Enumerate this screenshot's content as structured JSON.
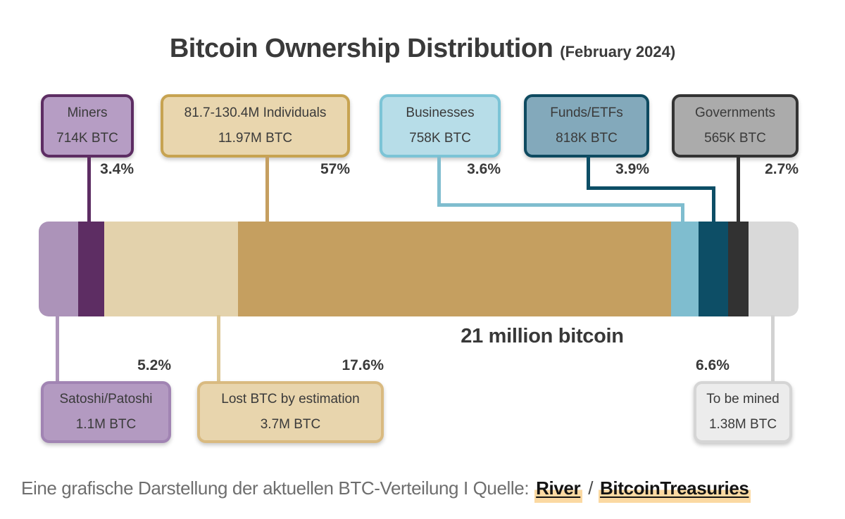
{
  "title": {
    "main": "Bitcoin Ownership Distribution",
    "subtitle": "(February 2024)"
  },
  "chart_data": {
    "type": "bar",
    "stacked": true,
    "orientation": "horizontal",
    "title": "Bitcoin Ownership Distribution",
    "subtitle": "(February 2024)",
    "total_label": "21 million bitcoin",
    "unit": "BTC",
    "segments": [
      {
        "name": "Satoshi/Patoshi",
        "amount": "1.1M BTC",
        "percent": 5.2,
        "color": "#ac93b9",
        "callout_side": "bottom"
      },
      {
        "name": "Miners",
        "amount": "714K BTC",
        "percent": 3.4,
        "color": "#5d2d63",
        "callout_side": "top"
      },
      {
        "name": "Lost BTC by estimation",
        "amount": "3.7M BTC",
        "percent": 17.6,
        "color": "#e3d2ac",
        "callout_side": "bottom"
      },
      {
        "name": "81.7-130.4M Individuals",
        "amount": "11.97M BTC",
        "percent": 57,
        "color": "#c59f60",
        "callout_side": "top"
      },
      {
        "name": "Businesses",
        "amount": "758K BTC",
        "percent": 3.6,
        "color": "#7fbdcf",
        "callout_side": "top"
      },
      {
        "name": "Funds/ETFs",
        "amount": "818K BTC",
        "percent": 3.9,
        "color": "#0d4e66",
        "callout_side": "top"
      },
      {
        "name": "Governments",
        "amount": "565K BTC",
        "percent": 2.7,
        "color": "#323232",
        "callout_side": "top"
      },
      {
        "name": "To be mined",
        "amount": "1.38M BTC",
        "percent": 6.6,
        "color": "#d9d9d9",
        "callout_side": "bottom"
      }
    ]
  },
  "callouts": {
    "top": [
      {
        "label": "Miners",
        "amount": "714K BTC",
        "percent": "3.4%",
        "fill": "#b69dc4",
        "border": "#5d2d63"
      },
      {
        "label": "81.7-130.4M Individuals",
        "amount": "11.97M BTC",
        "percent": "57%",
        "fill": "#e9d6ae",
        "border": "#c7a351"
      },
      {
        "label": "Businesses",
        "amount": "758K BTC",
        "percent": "3.6%",
        "fill": "#b7dde8",
        "border": "#7cc4d6"
      },
      {
        "label": "Funds/ETFs",
        "amount": "818K BTC",
        "percent": "3.9%",
        "fill": "#83a9bb",
        "border": "#0e4a60"
      },
      {
        "label": "Governments",
        "amount": "565K BTC",
        "percent": "2.7%",
        "fill": "#ababab",
        "border": "#333333"
      }
    ],
    "bottom": [
      {
        "label": "Satoshi/Patoshi",
        "amount": "1.1M BTC",
        "percent": "5.2%",
        "fill": "#b39ac1",
        "border": "#a184b3"
      },
      {
        "label": "Lost BTC by estimation",
        "amount": "3.7M BTC",
        "percent": "17.6%",
        "fill": "#e8d5ad",
        "border": "#d9ba80"
      },
      {
        "label": "To be mined",
        "amount": "1.38M BTC",
        "percent": "6.6%",
        "fill": "#ececec",
        "border": "#d5d5d5"
      }
    ]
  },
  "footer": {
    "text": "Eine grafische Darstellung der aktuellen BTC-Verteilung I Quelle:",
    "link1": "River",
    "separator": "/",
    "link2": "BitcoinTreasuries"
  },
  "palette": {
    "purple_dark": "#5d2d63",
    "purple_light": "#ac93b9",
    "gold": "#c59f60",
    "tan_line": "#ddc793",
    "blue_light": "#7fbdcf",
    "teal_dark": "#0d4e66",
    "gray_dark": "#323232",
    "gray_line": "#d2d2d2",
    "highlight": "#fbd9a2",
    "text_dark": "#3a3a3a",
    "text_gray": "#6e6e6e"
  }
}
